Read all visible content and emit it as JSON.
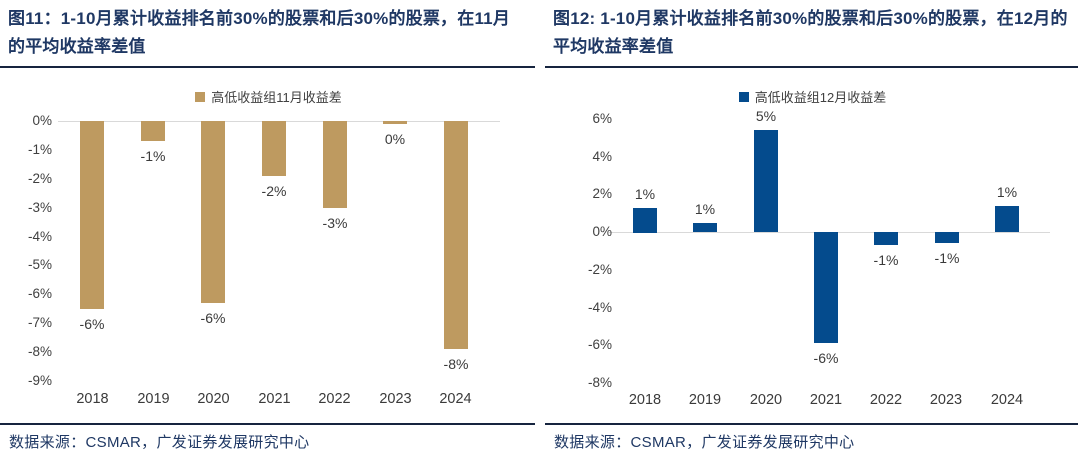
{
  "figures": [
    {
      "title": "图11：1-10月累计收益排名前30%的股票和后30%的股票，在11月的平均收益率差值",
      "legend_label": "高低收益组11月收益差",
      "source": "数据来源：CSMAR，广发证券发展研究中心"
    },
    {
      "title": "图12: 1-10月累计收益排名前30%的股票和后30%的股票，在12月的平均收益率差值",
      "legend_label": "高低收益组12月收益差",
      "source": "数据来源：CSMAR，广发证券发展研究中心"
    }
  ],
  "colors": {
    "title_navy": "#1F3864",
    "gold_bar": "#BE9A60",
    "blue_bar": "#044B8D",
    "zero_axis_line": "#D9D9D9",
    "rule_dark": "#16243F",
    "tick_text": "#3F3F3F"
  },
  "chart_data": [
    {
      "type": "bar",
      "title": "高低收益组11月收益差",
      "categories": [
        "2018",
        "2019",
        "2020",
        "2021",
        "2022",
        "2023",
        "2024"
      ],
      "values": [
        -6.5,
        -0.7,
        -6.3,
        -1.9,
        -3.0,
        -0.1,
        -7.9
      ],
      "data_labels": [
        "-6%",
        "-1%",
        "-6%",
        "-2%",
        "-3%",
        "0%",
        "-8%"
      ],
      "ylim": [
        -9,
        0
      ],
      "ytick_values": [
        0,
        -1,
        -2,
        -3,
        -4,
        -5,
        -6,
        -7,
        -8,
        -9
      ],
      "ytick_labels": [
        "0%",
        "-1%",
        "-2%",
        "-3%",
        "-4%",
        "-5%",
        "-6%",
        "-7%",
        "-8%",
        "-9%"
      ],
      "bar_color": "#BE9A60",
      "grid": "off",
      "legend_position": "top",
      "xlabel": "",
      "ylabel": ""
    },
    {
      "type": "bar",
      "title": "高低收益组12月收益差",
      "categories": [
        "2018",
        "2019",
        "2020",
        "2021",
        "2022",
        "2023",
        "2024"
      ],
      "values": [
        1.3,
        0.5,
        5.4,
        -5.9,
        -0.7,
        -0.6,
        1.4
      ],
      "data_labels": [
        "1%",
        "1%",
        "5%",
        "-6%",
        "-1%",
        "-1%",
        "1%"
      ],
      "ylim": [
        -8,
        6
      ],
      "ytick_values": [
        6,
        4,
        2,
        0,
        -2,
        -4,
        -6,
        -8
      ],
      "ytick_labels": [
        "6%",
        "4%",
        "2%",
        "0%",
        "-2%",
        "-4%",
        "-6%",
        "-8%"
      ],
      "bar_color": "#044B8D",
      "grid": "off",
      "legend_position": "top",
      "xlabel": "",
      "ylabel": ""
    }
  ]
}
